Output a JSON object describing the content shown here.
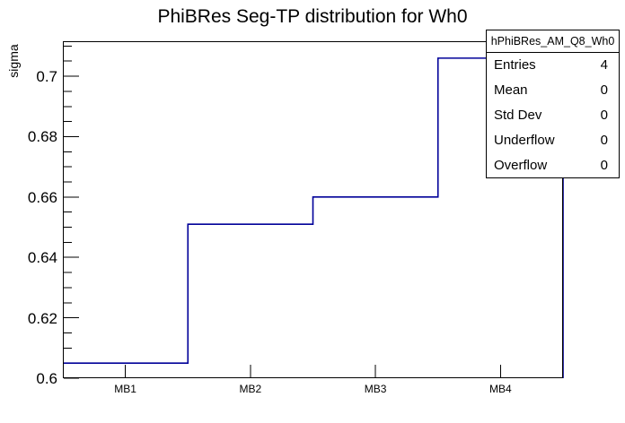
{
  "chart_data": {
    "type": "step-histogram",
    "title": "PhiBRes Seg-TP distribution for Wh0",
    "ylabel": "sigma",
    "xlabel": "",
    "categories": [
      "MB1",
      "MB2",
      "MB3",
      "MB4"
    ],
    "values": [
      0.605,
      0.651,
      0.66,
      0.706
    ],
    "ylim": [
      0.6,
      0.7116
    ],
    "y_major_ticks": [
      0.6,
      0.62,
      0.64,
      0.66,
      0.68,
      0.7
    ],
    "y_tick_labels": [
      "0.6",
      "0.62",
      "0.64",
      "0.66",
      "0.68",
      "0.7"
    ],
    "y_minor_step": 0.005,
    "grid": false,
    "legend": false,
    "line_color": "#000099",
    "axis_color": "#000000",
    "background_color": "#ffffff"
  },
  "stats_box": {
    "title": "hPhiBRes_AM_Q8_Wh0",
    "rows": [
      {
        "label": "Entries",
        "value": "4"
      },
      {
        "label": "Mean",
        "value": "0"
      },
      {
        "label": "Std Dev",
        "value": "0"
      },
      {
        "label": "Underflow",
        "value": "0"
      },
      {
        "label": "Overflow",
        "value": "0"
      }
    ]
  }
}
